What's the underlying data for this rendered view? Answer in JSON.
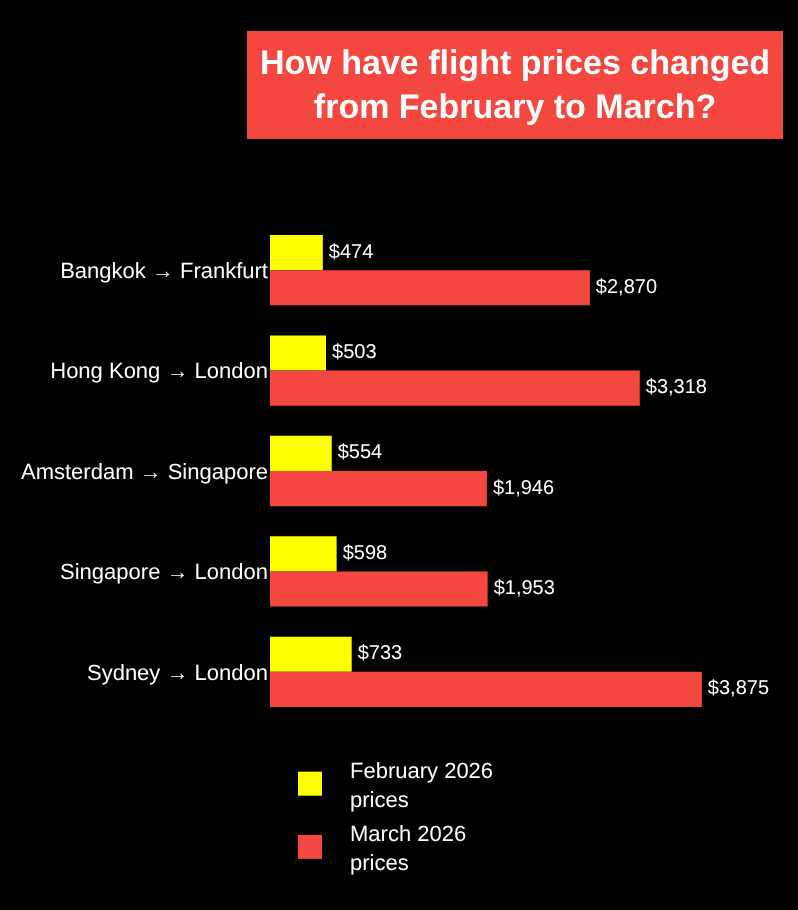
{
  "chart_data": {
    "type": "bar",
    "orientation": "horizontal",
    "title": "How have flight prices changed from February to March?",
    "categories": [
      "Bangkok → Frankfurt",
      "Hong Kong → London",
      "Amsterdam → Singapore",
      "Singapore → London",
      "Sydney → London"
    ],
    "series": [
      {
        "name": "February 2026 prices",
        "color": "#ffff00",
        "values": [
          474,
          503,
          554,
          598,
          733
        ],
        "value_labels": [
          "$474",
          "$503",
          "$554",
          "$598",
          "$733"
        ]
      },
      {
        "name": "March 2026 prices",
        "color": "#f4473f",
        "values": [
          2870,
          3318,
          1946,
          1953,
          3875
        ],
        "value_labels": [
          "$2,870",
          "$3,318",
          "$1,946",
          "$1,953",
          "$3,875"
        ]
      }
    ],
    "legend": "bottom",
    "grid": false
  }
}
